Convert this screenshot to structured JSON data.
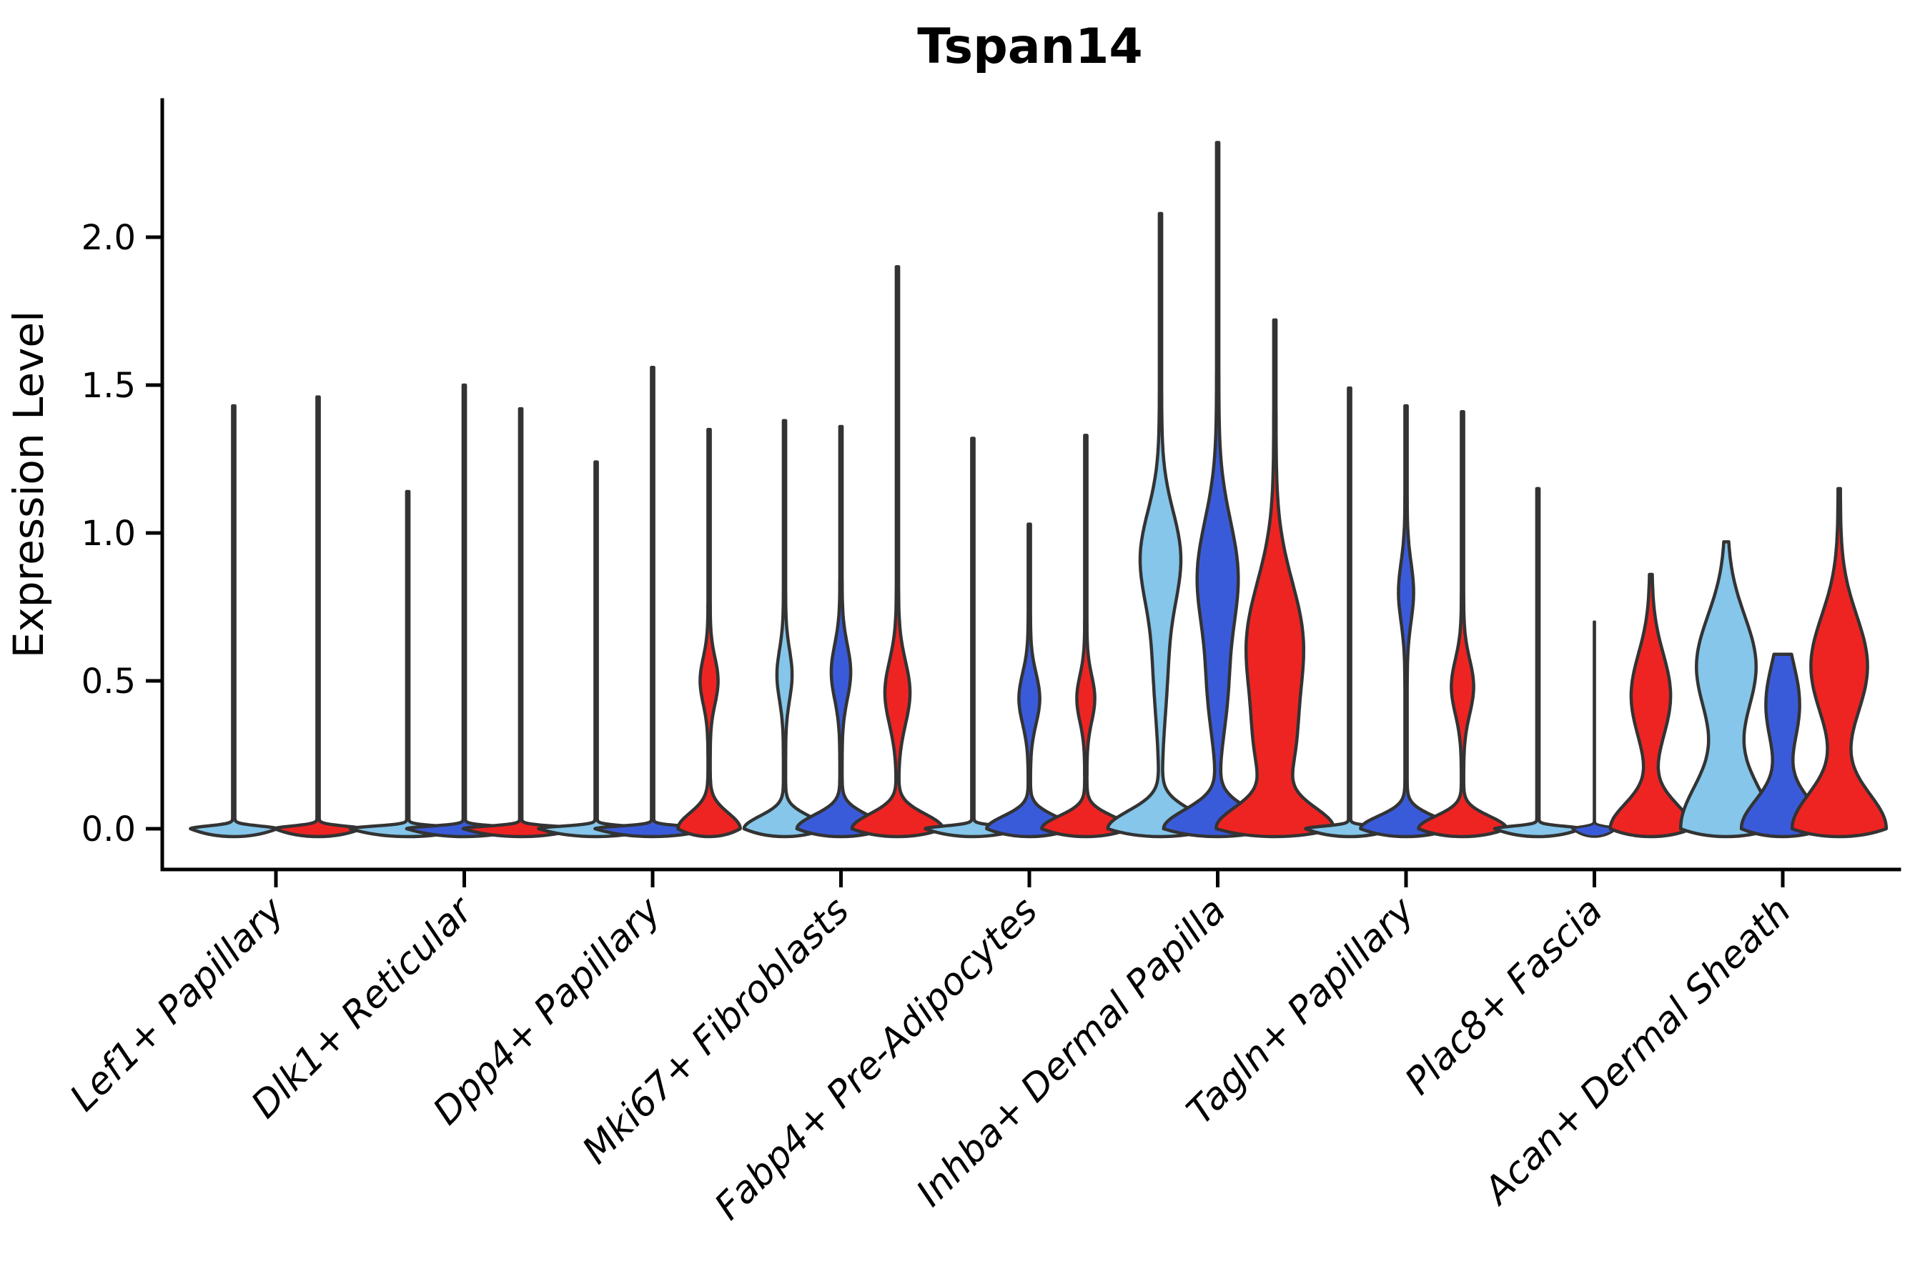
{
  "chart_data": {
    "type": "violin",
    "title": "Tspan14",
    "ylabel": "Expression Level",
    "xlabel": "",
    "ylim": [
      0,
      2.35
    ],
    "grid": false,
    "legend": "none",
    "yticks": [
      0.0,
      0.5,
      1.0,
      1.5,
      2.0
    ],
    "ytick_labels": [
      "0.0",
      "0.5",
      "1.0",
      "1.5",
      "2.0"
    ],
    "palette": {
      "lightblue": "#85C6EA",
      "blue": "#3A5BD9",
      "red": "#EE2423",
      "outline": "#333333",
      "axis": "#000000"
    },
    "categories": [
      "Lef1+ Papillary",
      "Dlk1+ Reticular",
      "Dpp4+ Papillary",
      "Mki67+ Fibroblasts",
      "Fabp4+ Pre-Adipocytes",
      "Inhba+ Dermal Papilla",
      "Tagln+ Papillary",
      "Plac8+ Fascia",
      "Acan+ Dermal Sheath"
    ],
    "groups": [
      {
        "category": "Lef1+ Papillary",
        "violins": [
          {
            "series": "lightblue",
            "offset": -59,
            "max": 1.43,
            "base": [
              59,
              0.013
            ],
            "bulges": []
          },
          {
            "series": "red",
            "offset": 59,
            "max": 1.46,
            "base": [
              59,
              0.013
            ],
            "bulges": []
          }
        ]
      },
      {
        "category": "Dlk1+ Reticular",
        "violins": [
          {
            "series": "lightblue",
            "offset": -79,
            "max": 1.14,
            "base": [
              79,
              0.012
            ],
            "bulges": []
          },
          {
            "series": "blue",
            "offset": 0,
            "max": 1.5,
            "base": [
              79,
              0.012
            ],
            "bulges": []
          },
          {
            "series": "red",
            "offset": 79,
            "max": 1.42,
            "base": [
              79,
              0.012
            ],
            "bulges": []
          }
        ]
      },
      {
        "category": "Dpp4+ Papillary",
        "violins": [
          {
            "series": "lightblue",
            "offset": -79,
            "max": 1.24,
            "base": [
              79,
              0.012
            ],
            "bulges": []
          },
          {
            "series": "blue",
            "offset": 0,
            "max": 1.56,
            "base": [
              79,
              0.012
            ],
            "bulges": []
          },
          {
            "series": "red",
            "offset": 79,
            "max": 1.35,
            "base": [
              42,
              0.075
            ],
            "bulges": [
              [
                0.5,
                11,
                0.11
              ]
            ]
          }
        ]
      },
      {
        "category": "Mki67+ Fibroblasts",
        "violins": [
          {
            "series": "lightblue",
            "offset": -79,
            "max": 1.38,
            "base": [
              55,
              0.06
            ],
            "bulges": [
              [
                0.52,
                9,
                0.12
              ]
            ]
          },
          {
            "series": "blue",
            "offset": 0,
            "max": 1.36,
            "base": [
              60,
              0.065
            ],
            "bulges": [
              [
                0.53,
                12,
                0.13
              ]
            ]
          },
          {
            "series": "red",
            "offset": 79,
            "max": 1.9,
            "base": [
              62,
              0.07
            ],
            "bulges": [
              [
                0.46,
                16,
                0.15
              ]
            ]
          }
        ]
      },
      {
        "category": "Fabp4+ Pre-Adipocytes",
        "violins": [
          {
            "series": "lightblue",
            "offset": -79,
            "max": 1.32,
            "base": [
              65,
              0.013
            ],
            "bulges": []
          },
          {
            "series": "blue",
            "offset": 0,
            "max": 1.03,
            "base": [
              58,
              0.06
            ],
            "bulges": [
              [
                0.44,
                13,
                0.12
              ]
            ]
          },
          {
            "series": "red",
            "offset": 79,
            "max": 1.33,
            "base": [
              60,
              0.06
            ],
            "bulges": [
              [
                0.44,
                11,
                0.11
              ]
            ]
          }
        ]
      },
      {
        "category": "Inhba+ Dermal Papilla",
        "violins": [
          {
            "series": "lightblue",
            "offset": -80,
            "max": 2.08,
            "base": [
              72,
              0.085
            ],
            "bulges": [
              [
                0.92,
                26,
                0.22
              ],
              [
                0.55,
                8,
                0.25
              ]
            ]
          },
          {
            "series": "blue",
            "offset": 0,
            "max": 2.32,
            "base": [
              74,
              0.09
            ],
            "bulges": [
              [
                0.85,
                27,
                0.27
              ],
              [
                0.45,
                10,
                0.2
              ]
            ]
          },
          {
            "series": "red",
            "offset": 80,
            "max": 1.72,
            "base": [
              76,
              0.1
            ],
            "bulges": [
              [
                0.62,
                38,
                0.3
              ],
              [
                0.25,
                18,
                0.2
              ]
            ]
          }
        ]
      },
      {
        "category": "Tagln+ Papillary",
        "violins": [
          {
            "series": "lightblue",
            "offset": -79,
            "max": 1.49,
            "base": [
              60,
              0.012
            ],
            "bulges": []
          },
          {
            "series": "blue",
            "offset": 0,
            "max": 1.43,
            "base": [
              62,
              0.06
            ],
            "bulges": [
              [
                0.8,
                9,
                0.14
              ]
            ]
          },
          {
            "series": "red",
            "offset": 79,
            "max": 1.41,
            "base": [
              60,
              0.06
            ],
            "bulges": [
              [
                0.48,
                14,
                0.13
              ]
            ]
          }
        ]
      },
      {
        "category": "Plac8+ Fascia",
        "violins": [
          {
            "series": "lightblue",
            "offset": -79,
            "max": 1.15,
            "base": [
              59,
              0.012
            ],
            "bulges": []
          },
          {
            "series": "blue",
            "offset": 0,
            "max": 0.7,
            "base": [
              30,
              0.01
            ],
            "bulges": [],
            "thin": true
          },
          {
            "series": "red",
            "offset": 79,
            "max": 0.86,
            "base": [
              55,
              0.12
            ],
            "bulges": [
              [
                0.45,
                26,
                0.2
              ]
            ]
          }
        ]
      },
      {
        "category": "Acan+ Dermal Sheath",
        "violins": [
          {
            "series": "lightblue",
            "offset": -79,
            "max": 0.97,
            "base": [
              62,
              0.22
            ],
            "bulges": [
              [
                0.55,
                40,
                0.24
              ]
            ]
          },
          {
            "series": "blue",
            "offset": 0,
            "max": 0.59,
            "base": [
              56,
              0.14
            ],
            "bulges": [
              [
                0.42,
                22,
                0.2
              ]
            ]
          },
          {
            "series": "red",
            "offset": 79,
            "max": 1.15,
            "base": [
              64,
              0.17
            ],
            "bulges": [
              [
                0.55,
                38,
                0.24
              ]
            ]
          }
        ]
      }
    ]
  }
}
